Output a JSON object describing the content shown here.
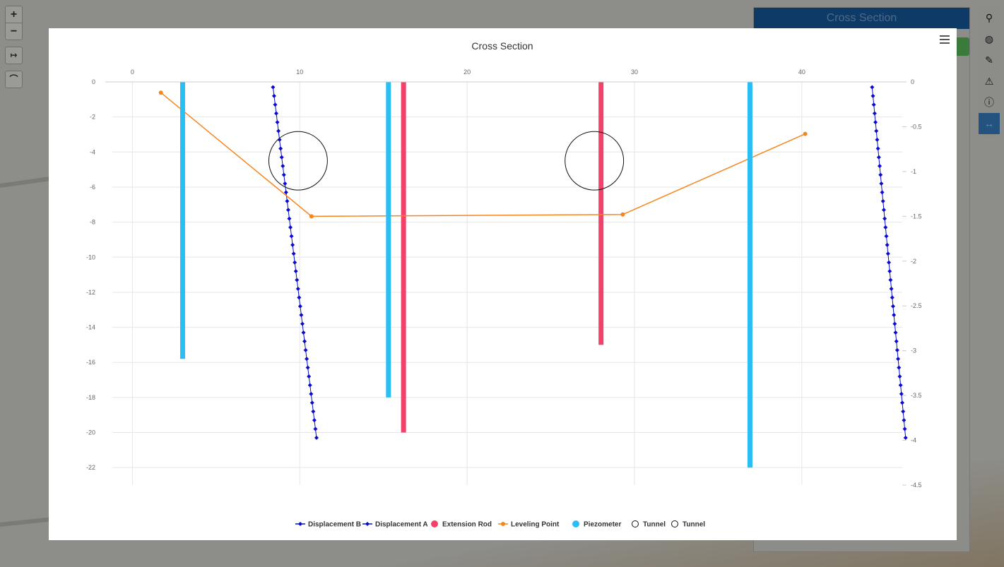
{
  "window": {
    "side_panel_title": "Cross Section",
    "zoom_in": "+",
    "zoom_out": "−"
  },
  "toolbar_icons": [
    "map-marker-icon",
    "globe-icon",
    "wrench-icon",
    "warning-icon",
    "info-icon",
    "arrows-horizontal-icon"
  ],
  "chart_data": {
    "type": "line",
    "title": "Cross Section",
    "xaxis_top": {
      "min": -1.2,
      "max": 46,
      "ticks": [
        0,
        10,
        20,
        30,
        40
      ]
    },
    "yaxis_left": {
      "min": -23,
      "max": 0,
      "ticks": [
        0,
        -2,
        -4,
        -6,
        -8,
        -10,
        -12,
        -14,
        -16,
        -18,
        -20,
        -22
      ]
    },
    "yaxis_right": {
      "min": -4.5,
      "max": 0,
      "ticks": [
        "0",
        "-0.5",
        "-1",
        "-1.5",
        "-2",
        "-2.5",
        "-3",
        "-3.5",
        "-4",
        "-4.5"
      ]
    },
    "grid": true,
    "legend_position": "bottom",
    "series": [
      {
        "name": "Displacement B",
        "kind": "line-diamond",
        "color": "#0a0acc",
        "points": [
          [
            8.4,
            -0.3
          ],
          [
            11.0,
            -20.3
          ]
        ]
      },
      {
        "name": "Displacement A",
        "kind": "line-diamond",
        "color": "#0a0acc",
        "points": [
          [
            44.2,
            -0.3
          ],
          [
            46.2,
            -20.3
          ]
        ]
      },
      {
        "name": "Extension Rod",
        "kind": "bar-vertical",
        "color": "#f2426a",
        "bars": [
          {
            "x": 16.2,
            "top": 0,
            "bottom": -20
          },
          {
            "x": 28.0,
            "top": 0,
            "bottom": -15
          }
        ]
      },
      {
        "name": "Leveling Point",
        "kind": "line-dot",
        "color": "#f5861f",
        "axis": "right",
        "points": [
          [
            1.7,
            -0.12
          ],
          [
            10.7,
            -1.5
          ],
          [
            29.3,
            -1.48
          ],
          [
            40.2,
            -0.58
          ]
        ]
      },
      {
        "name": "Piezometer",
        "kind": "bar-vertical",
        "color": "#2bbef5",
        "bars": [
          {
            "x": 3.0,
            "top": 0,
            "bottom": -15.8
          },
          {
            "x": 15.3,
            "top": 0,
            "bottom": -18
          },
          {
            "x": 36.9,
            "top": 0,
            "bottom": -22
          }
        ]
      },
      {
        "name": "Tunnel",
        "kind": "circle",
        "color": "#111111",
        "center": [
          9.9,
          -4.5
        ],
        "radius_x": 1.75
      },
      {
        "name": "Tunnel",
        "kind": "circle",
        "color": "#111111",
        "center": [
          27.6,
          -4.5
        ],
        "radius_x": 1.75
      }
    ]
  }
}
